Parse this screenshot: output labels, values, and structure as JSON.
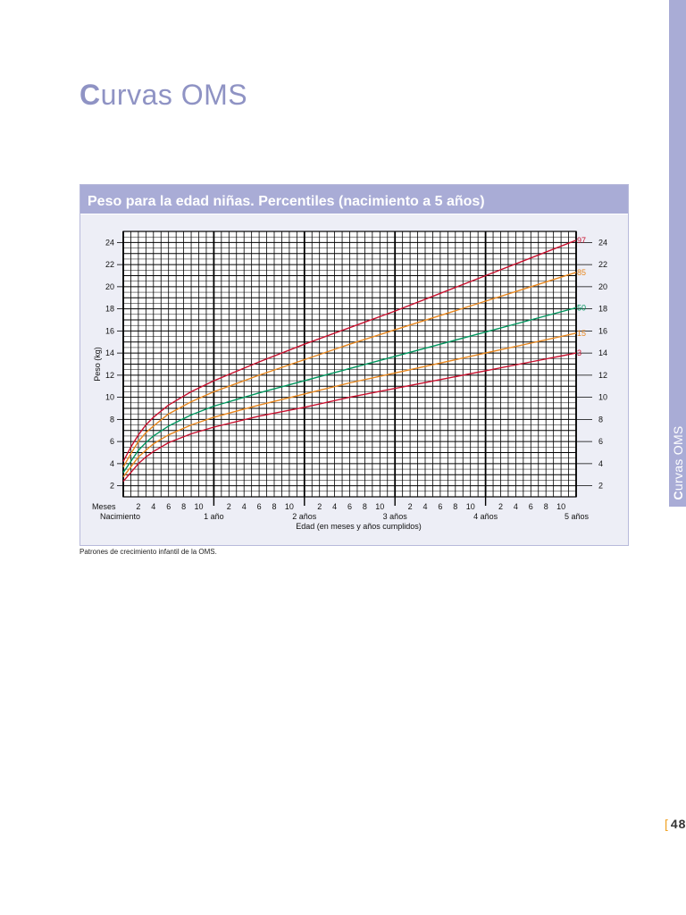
{
  "page": {
    "title_first": "C",
    "title_rest": "urvas OMS",
    "side_tab_first": "C",
    "side_tab_rest": "urvas OMS",
    "source_note": "Patrones de crecimiento infantil de la OMS.",
    "page_number": "48"
  },
  "colors": {
    "accent": "#a9acd6",
    "title": "#8f93c4",
    "p97": "#c8102e",
    "p85": "#e8871e",
    "p50": "#00965e",
    "p15": "#e8871e",
    "p3": "#c8102e"
  },
  "chart_data": {
    "type": "line",
    "title": "Peso para la edad niñas. Percentiles (nacimiento a 5 años)",
    "xlabel": "Edad (en meses y años cumplidos)",
    "ylabel": "Peso (kg)",
    "x_unit": "months",
    "xlim": [
      0,
      60
    ],
    "ylim": [
      1,
      25
    ],
    "y_ticks": [
      2,
      4,
      6,
      8,
      10,
      12,
      14,
      16,
      18,
      20,
      22,
      24
    ],
    "x_month_prefix": "Meses",
    "x_month_ticks": [
      "2",
      "4",
      "6",
      "8",
      "10"
    ],
    "year_labels": [
      "Nacimiento",
      "1 año",
      "2 años",
      "3 años",
      "4 años",
      "5 años"
    ],
    "grid": true,
    "x": [
      0,
      1,
      2,
      3,
      4,
      6,
      9,
      12,
      18,
      24,
      30,
      36,
      42,
      48,
      54,
      60
    ],
    "series": [
      {
        "name": "97",
        "values": [
          4.2,
          5.5,
          6.6,
          7.5,
          8.2,
          9.3,
          10.5,
          11.5,
          13.2,
          14.8,
          16.3,
          17.8,
          19.4,
          21.0,
          22.6,
          24.2
        ]
      },
      {
        "name": "85",
        "values": [
          3.7,
          4.9,
          6.0,
          6.8,
          7.4,
          8.5,
          9.6,
          10.5,
          12.0,
          13.4,
          14.8,
          16.1,
          17.4,
          18.7,
          20.0,
          21.3
        ]
      },
      {
        "name": "50",
        "values": [
          3.2,
          4.2,
          5.2,
          5.9,
          6.5,
          7.4,
          8.4,
          9.2,
          10.4,
          11.5,
          12.6,
          13.7,
          14.8,
          15.9,
          17.0,
          18.1
        ]
      },
      {
        "name": "15",
        "values": [
          2.8,
          3.7,
          4.6,
          5.2,
          5.8,
          6.6,
          7.5,
          8.2,
          9.3,
          10.3,
          11.3,
          12.2,
          13.1,
          14.0,
          14.9,
          15.8
        ]
      },
      {
        "name": "3",
        "values": [
          2.4,
          3.2,
          4.0,
          4.6,
          5.1,
          5.9,
          6.7,
          7.3,
          8.3,
          9.1,
          10.0,
          10.8,
          11.6,
          12.4,
          13.2,
          14.0
        ]
      }
    ]
  }
}
